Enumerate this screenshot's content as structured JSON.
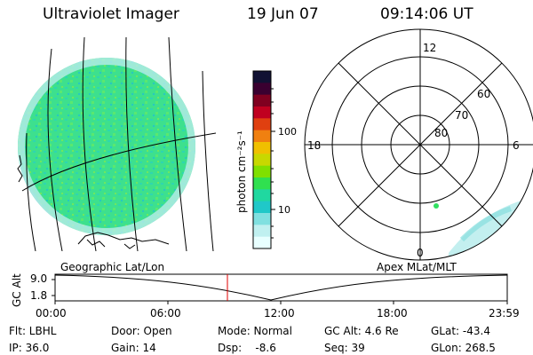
{
  "header": {
    "instrument": "Ultraviolet Imager",
    "date": "19 Jun 07",
    "time": "09:14:06 UT"
  },
  "colorbar": {
    "unit_label": "photon cm⁻²s⁻¹",
    "ticks": [
      "100",
      "10"
    ],
    "colors": [
      "#111133",
      "#3a0030",
      "#800020",
      "#c00020",
      "#e04010",
      "#f08010",
      "#f0c000",
      "#c8d800",
      "#80e000",
      "#30e050",
      "#20d8a0",
      "#20c8c8",
      "#80e0e0",
      "#c0f0f0",
      "#e8ffff"
    ]
  },
  "map": {
    "projection_label": "Geographic Lat/Lon",
    "disc_color": "#3de08e"
  },
  "polar": {
    "mlt_labels": {
      "top": "12",
      "bottom": "0",
      "left": "18",
      "right": "6"
    },
    "lat_labels": [
      "60",
      "70",
      "80"
    ],
    "projection_label": "Apex MLat/MLT"
  },
  "timeline": {
    "axis_label": "GC Alt",
    "y_ticks": [
      "9.0",
      "1.8"
    ],
    "x_ticks": [
      "00:00",
      "06:00",
      "12:00",
      "18:00",
      "23:59"
    ],
    "current_marker_color": "#e00000"
  },
  "footer": {
    "flt": "Flt: LBHL",
    "ip": "IP: 36.0",
    "door": "Door: Open",
    "gain": "Gain: 14",
    "mode": "Mode: Normal",
    "dsp": "Dsp:    -8.6",
    "gc_alt": "GC Alt: 4.6 Re",
    "seq": "Seq: 39",
    "glat": "GLat: -43.4",
    "glon": "GLon: 268.5"
  }
}
